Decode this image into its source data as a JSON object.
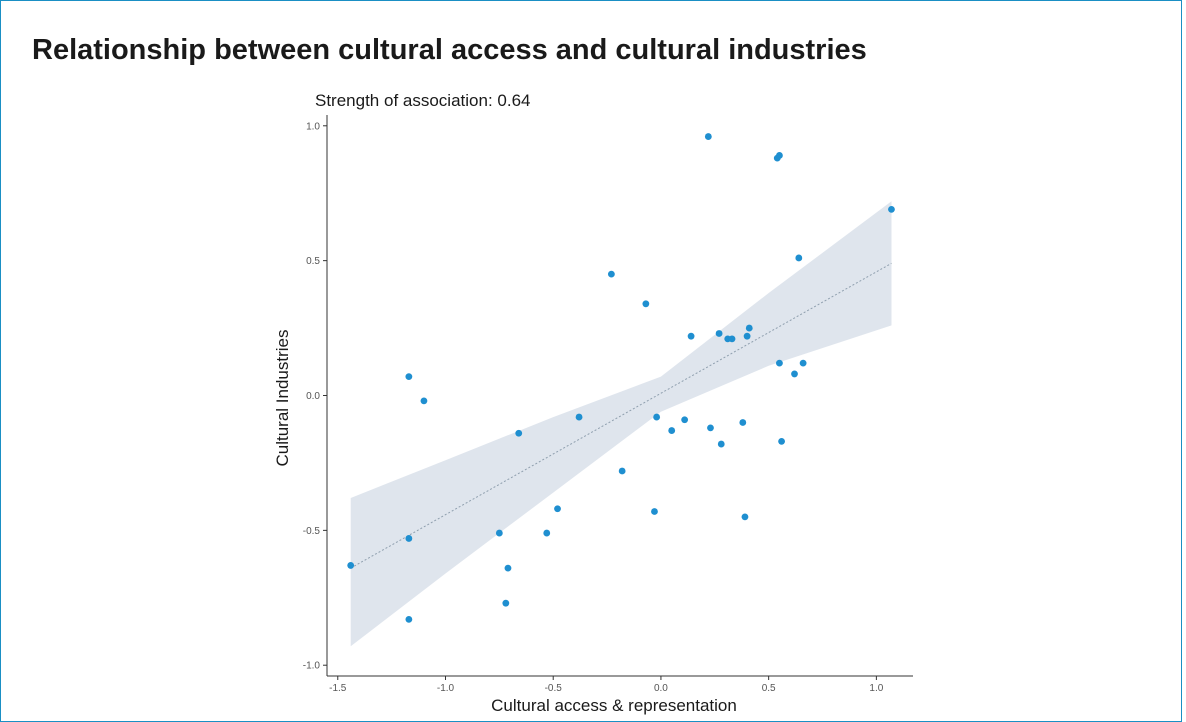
{
  "title": "Relationship between cultural access and cultural industries",
  "chart_data": {
    "type": "scatter",
    "subtitle": "Strength of association: 0.64",
    "xlabel": "Cultural access & representation",
    "ylabel": "Cultural Industries",
    "xlim": [
      -1.55,
      1.17
    ],
    "ylim": [
      -1.04,
      1.04
    ],
    "xticks": [
      {
        "value": -1.5,
        "label": "-1.5"
      },
      {
        "value": -1.0,
        "label": "-1.0"
      },
      {
        "value": -0.5,
        "label": "-0.5"
      },
      {
        "value": 0.0,
        "label": "0.0"
      },
      {
        "value": 0.5,
        "label": "0.5"
      },
      {
        "value": 1.0,
        "label": "1.0"
      }
    ],
    "yticks": [
      {
        "value": -1.0,
        "label": "-1.0"
      },
      {
        "value": -0.5,
        "label": "-0.5"
      },
      {
        "value": 0.0,
        "label": "0.0"
      },
      {
        "value": 0.5,
        "label": "0.5"
      },
      {
        "value": 1.0,
        "label": "1.0"
      }
    ],
    "grid": false,
    "point_color": "#1f8fd0",
    "band_color": "#d9e1ea",
    "trend_color": "#8f9fae",
    "trend_line": {
      "x": [
        -1.44,
        1.07
      ],
      "y": [
        -0.64,
        0.49
      ]
    },
    "confidence_band": {
      "x": [
        -1.44,
        -1.0,
        -0.5,
        0.0,
        0.5,
        1.07
      ],
      "lower": [
        -0.93,
        -0.66,
        -0.36,
        -0.06,
        0.11,
        0.26
      ],
      "upper": [
        -0.38,
        -0.24,
        -0.08,
        0.07,
        0.38,
        0.72
      ]
    },
    "points": [
      {
        "x": -1.44,
        "y": -0.63
      },
      {
        "x": -1.17,
        "y": 0.07
      },
      {
        "x": -1.1,
        "y": -0.02
      },
      {
        "x": -1.17,
        "y": -0.53
      },
      {
        "x": -1.17,
        "y": -0.83
      },
      {
        "x": -0.75,
        "y": -0.51
      },
      {
        "x": -0.71,
        "y": -0.64
      },
      {
        "x": -0.72,
        "y": -0.77
      },
      {
        "x": -0.66,
        "y": -0.14
      },
      {
        "x": -0.53,
        "y": -0.51
      },
      {
        "x": -0.48,
        "y": -0.42
      },
      {
        "x": -0.38,
        "y": -0.08
      },
      {
        "x": -0.23,
        "y": 0.45
      },
      {
        "x": -0.18,
        "y": -0.28
      },
      {
        "x": -0.07,
        "y": 0.34
      },
      {
        "x": -0.03,
        "y": -0.43
      },
      {
        "x": -0.02,
        "y": -0.08
      },
      {
        "x": 0.05,
        "y": -0.13
      },
      {
        "x": 0.11,
        "y": -0.09
      },
      {
        "x": 0.14,
        "y": 0.22
      },
      {
        "x": 0.22,
        "y": 0.96
      },
      {
        "x": 0.23,
        "y": -0.12
      },
      {
        "x": 0.27,
        "y": 0.23
      },
      {
        "x": 0.28,
        "y": -0.18
      },
      {
        "x": 0.31,
        "y": 0.21
      },
      {
        "x": 0.33,
        "y": 0.21
      },
      {
        "x": 0.38,
        "y": -0.1
      },
      {
        "x": 0.39,
        "y": -0.45
      },
      {
        "x": 0.4,
        "y": 0.22
      },
      {
        "x": 0.41,
        "y": 0.25
      },
      {
        "x": 0.54,
        "y": 0.88
      },
      {
        "x": 0.55,
        "y": 0.89
      },
      {
        "x": 0.55,
        "y": 0.12
      },
      {
        "x": 0.56,
        "y": -0.17
      },
      {
        "x": 0.62,
        "y": 0.08
      },
      {
        "x": 0.64,
        "y": 0.51
      },
      {
        "x": 0.66,
        "y": 0.12
      },
      {
        "x": 1.07,
        "y": 0.69
      }
    ]
  }
}
